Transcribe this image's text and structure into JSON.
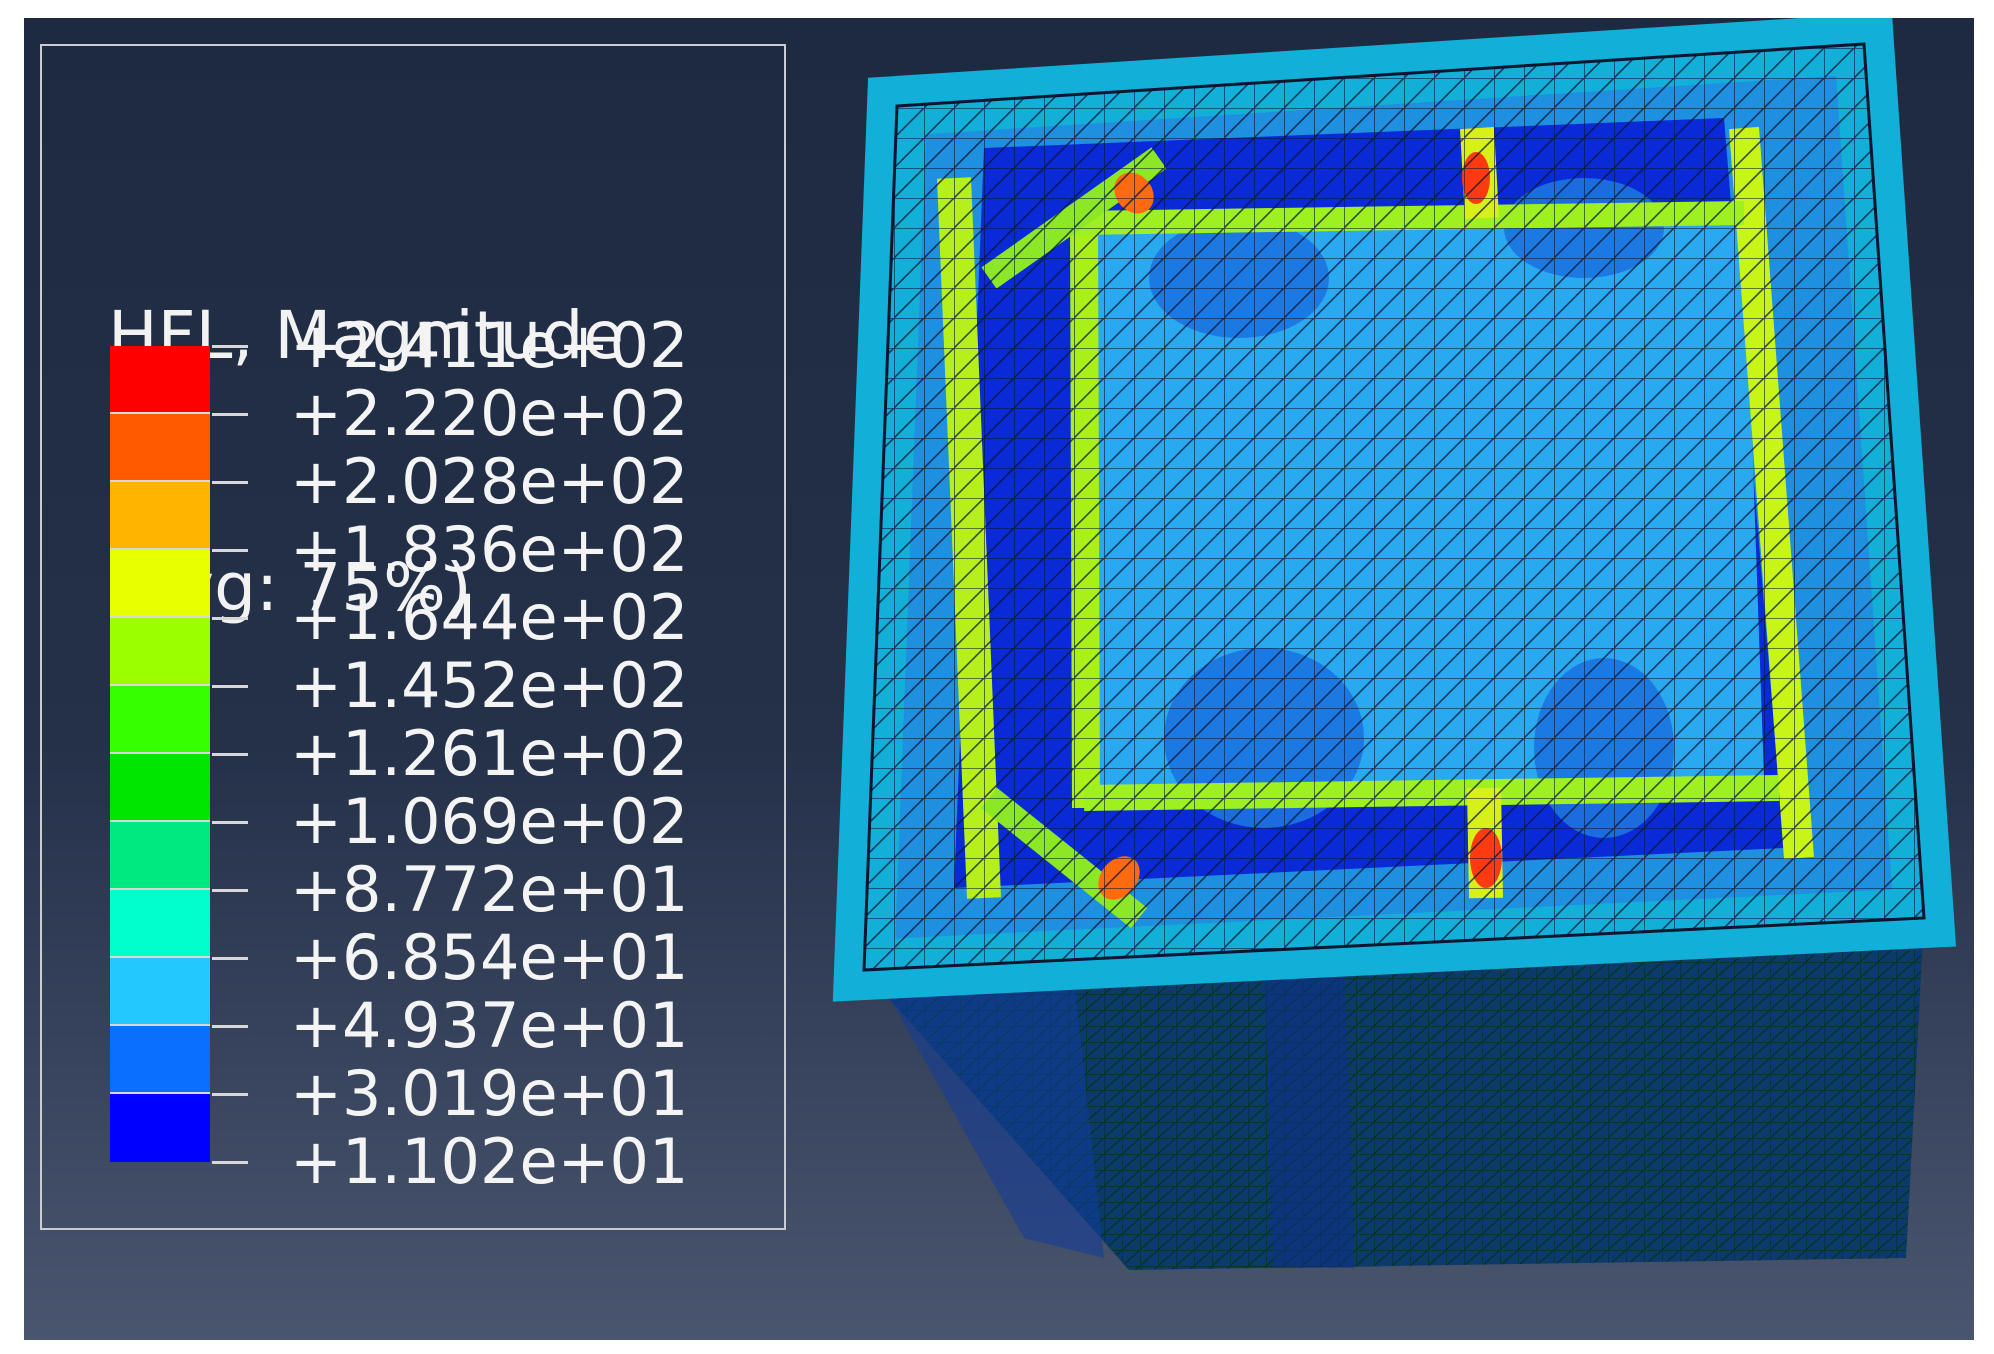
{
  "legend": {
    "title_line1": "HFL, Magnitude",
    "title_line2": "(Avg: 75%)",
    "ticks": [
      "+2.411e+02",
      "+2.220e+02",
      "+2.028e+02",
      "+1.836e+02",
      "+1.644e+02",
      "+1.452e+02",
      "+1.261e+02",
      "+1.069e+02",
      "+8.772e+01",
      "+6.854e+01",
      "+4.937e+01",
      "+3.019e+01",
      "+1.102e+01"
    ],
    "colors": [
      "#ff0000",
      "#ff5a00",
      "#ffb400",
      "#e8ff00",
      "#9cff00",
      "#36ff00",
      "#00e600",
      "#00e880",
      "#00ffcc",
      "#22c8ff",
      "#0a6eff",
      "#0000ff"
    ]
  }
}
